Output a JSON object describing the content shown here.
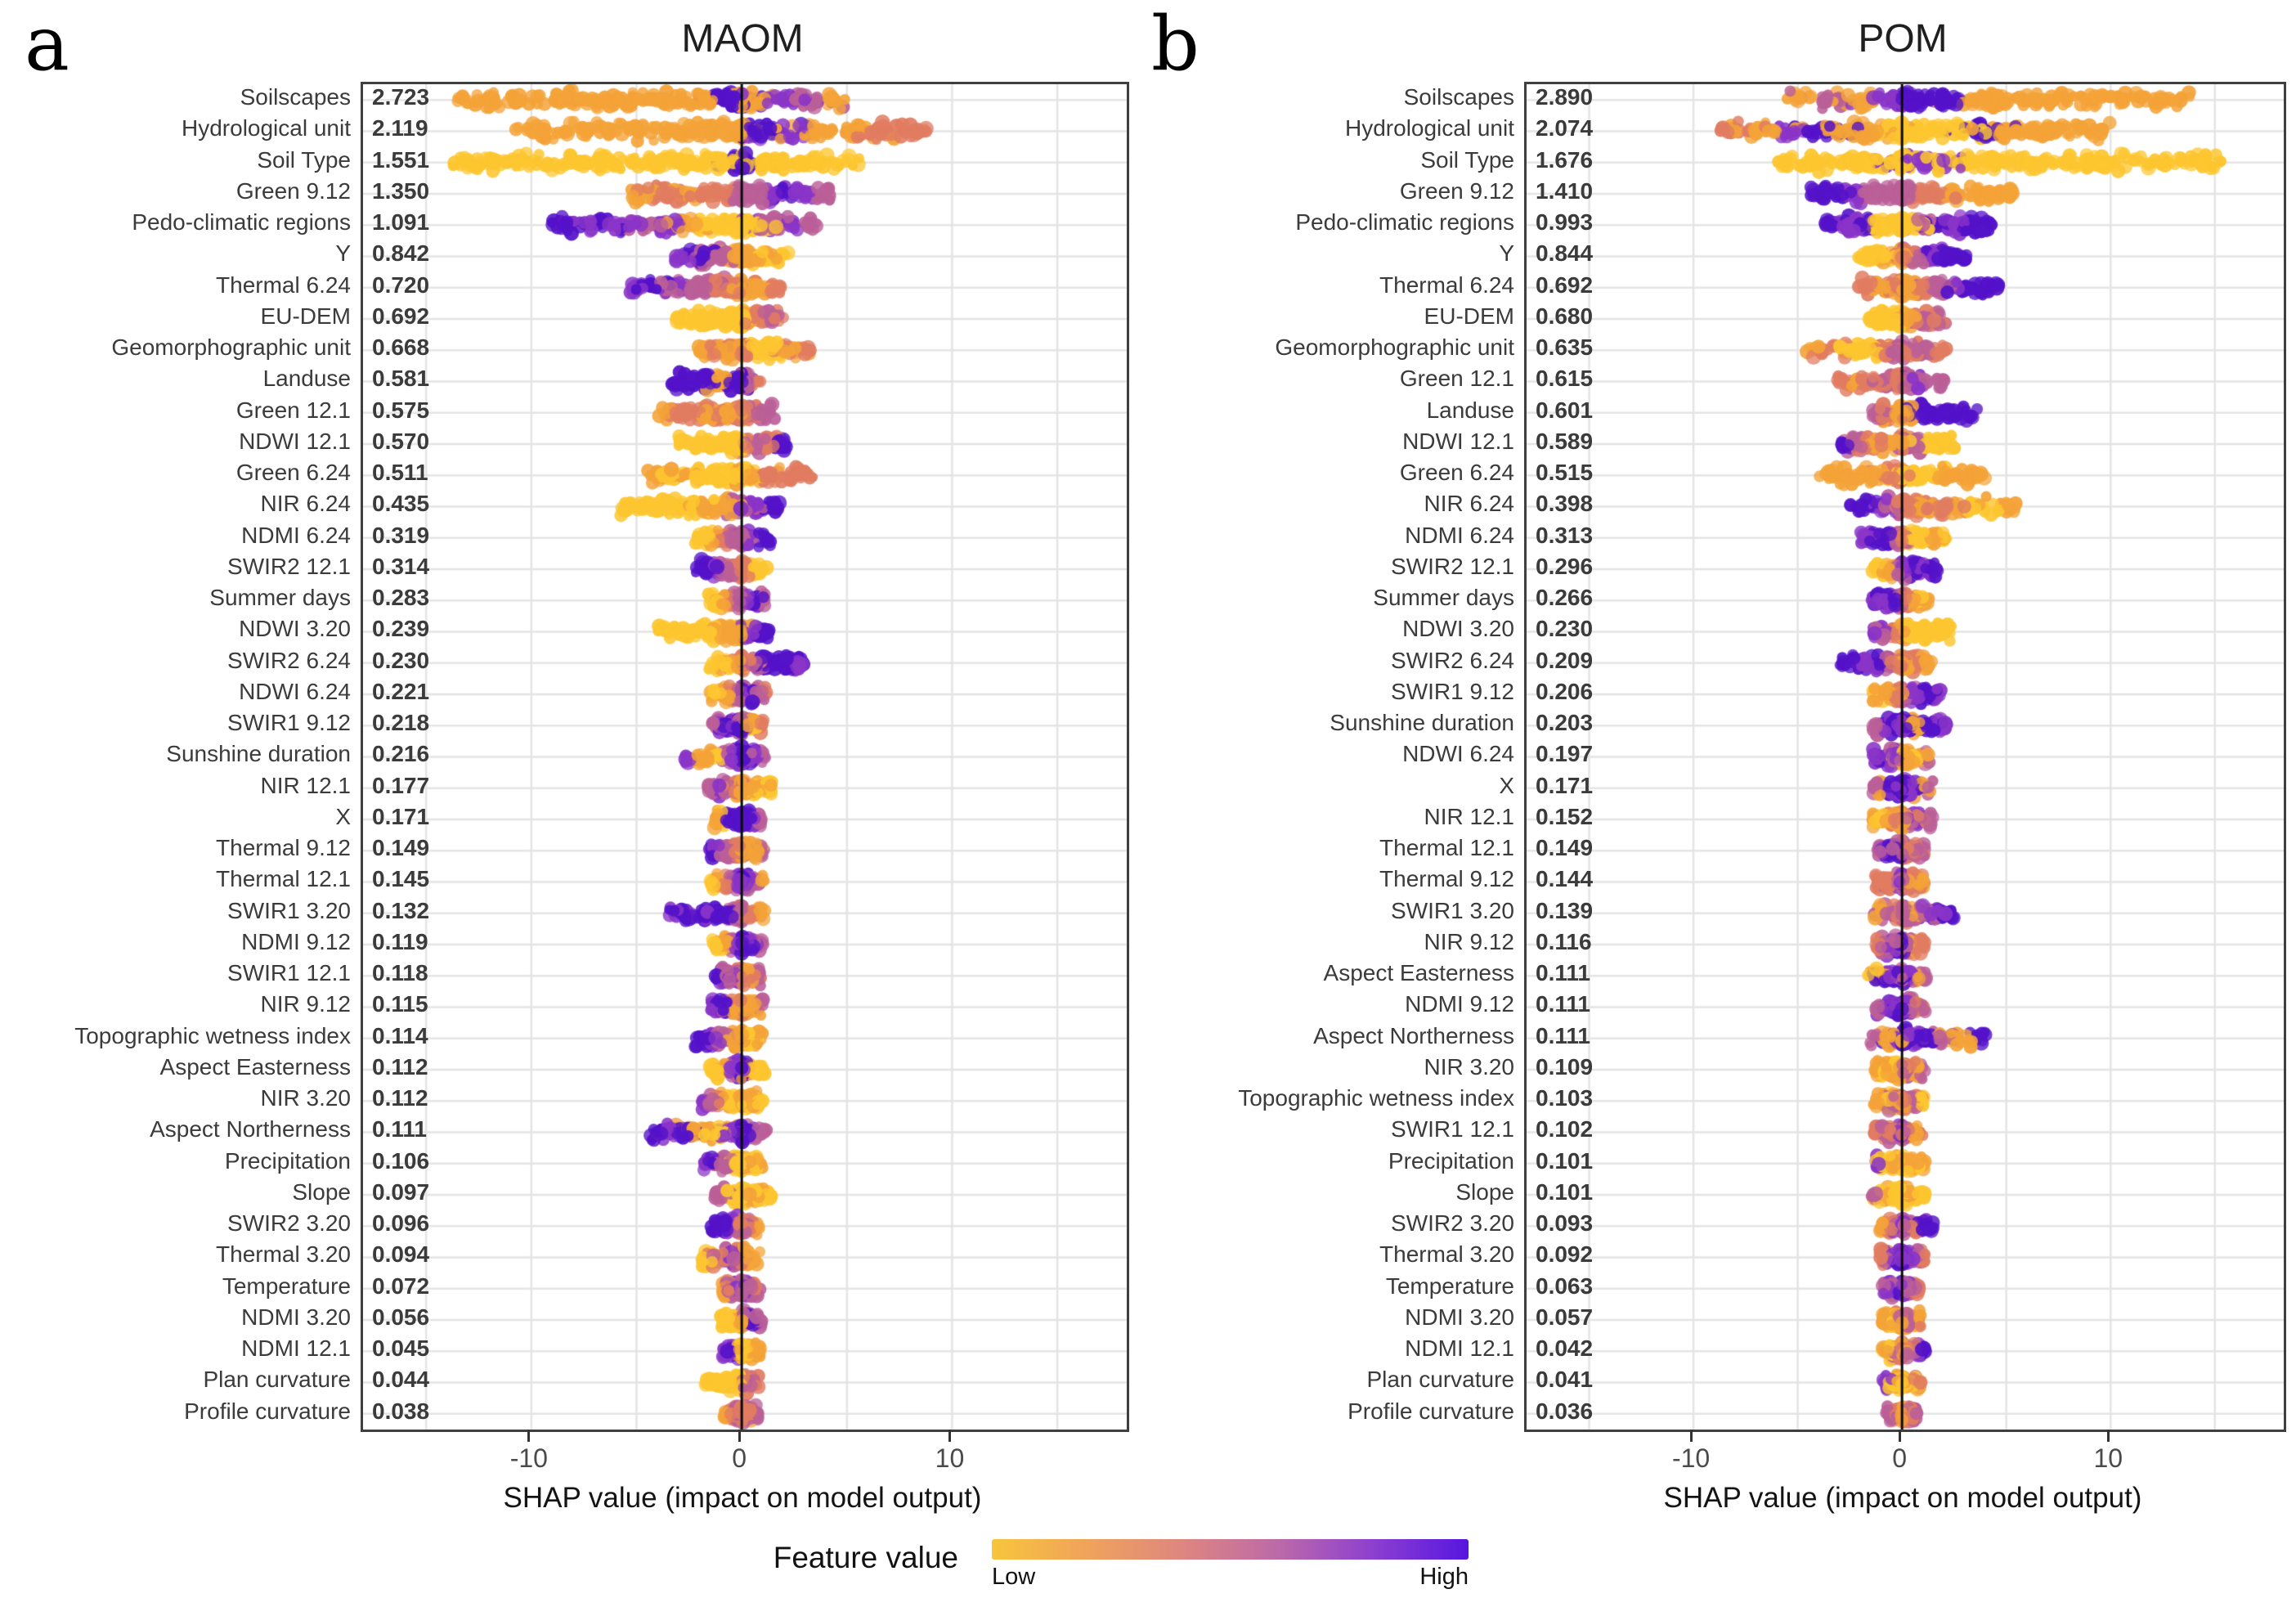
{
  "figure": {
    "letters": [
      "a",
      "b"
    ],
    "legend": {
      "title": "Feature value",
      "low_label": "Low",
      "high_label": "High",
      "gradient": [
        "#F7C53C",
        "#F0A35B",
        "#DE8680",
        "#BC6AA8",
        "#8D3FD0",
        "#5716E0"
      ]
    },
    "palette": {
      "y": "#FDC630",
      "o": "#F4A338",
      "s": "#E17C61",
      "m": "#BB5F98",
      "p": "#8A34C8",
      "d": "#5412C9"
    },
    "seed": 20240513
  },
  "chart_data": [
    {
      "type": "scatter",
      "variant": "shap-beeswarm",
      "title": "MAOM",
      "xlabel": "SHAP value (impact on model output)",
      "xlim": [
        -18.0,
        18.3
      ],
      "xticks": [
        -10,
        0,
        10
      ],
      "grid_every": 5,
      "features": [
        {
          "label": "Soilscapes",
          "value": "2.723",
          "min": -13.5,
          "max": 5.2,
          "pattern": "ooooooooodopmo"
        },
        {
          "label": "Hydrological unit",
          "value": "2.119",
          "min": -11.0,
          "max": 8.8,
          "pattern": "oooooooodpooss"
        },
        {
          "label": "Soil Type",
          "value": "1.551",
          "min": -14.3,
          "max": 5.6,
          "pattern": "yyyyyyyyyyyyyydyyyyy"
        },
        {
          "label": "Green 9.12",
          "value": "1.350",
          "min": -5.3,
          "max": 4.2,
          "pattern": "ossossmmpdpm"
        },
        {
          "label": "Pedo-climatic regions",
          "value": "1.091",
          "min": -9.0,
          "max": 3.7,
          "pattern": "dpdpmpoyyympm"
        },
        {
          "label": "Y",
          "value": "0.842",
          "min": -3.2,
          "max": 2.2,
          "pattern": "pddmmoooyoy"
        },
        {
          "label": "Thermal 6.24",
          "value": "0.720",
          "min": -5.3,
          "max": 1.9,
          "pattern": "pdmpmmssoos"
        },
        {
          "label": "EU-DEM",
          "value": "0.692",
          "min": -3.1,
          "max": 2.0,
          "pattern": "yyyyyyyosms"
        },
        {
          "label": "Geomorphographic unit",
          "value": "0.668",
          "min": -2.1,
          "max": 3.4,
          "pattern": "osoosyyysos"
        },
        {
          "label": "Landuse",
          "value": "0.581",
          "min": -3.3,
          "max": 0.9,
          "pattern": "dddddoddms"
        },
        {
          "label": "Green 12.1",
          "value": "0.575",
          "min": -4.0,
          "max": 1.6,
          "pattern": "ossososmm"
        },
        {
          "label": "NDWI 12.1",
          "value": "0.570",
          "min": -3.0,
          "max": 2.2,
          "pattern": "yyyyyysmsd"
        },
        {
          "label": "Green 6.24",
          "value": "0.511",
          "min": -4.6,
          "max": 3.4,
          "pattern": "oyoyyyosss"
        },
        {
          "label": "NIR 6.24",
          "value": "0.435",
          "min": -5.8,
          "max": 1.8,
          "pattern": "yyyyyoompd"
        },
        {
          "label": "NDMI 6.24",
          "value": "0.319",
          "min": -2.3,
          "max": 1.4,
          "pattern": "yyosmmpdd"
        },
        {
          "label": "SWIR2 12.1",
          "value": "0.314",
          "min": -2.2,
          "max": 1.2,
          "pattern": "ddpmmsoyy"
        },
        {
          "label": "Summer days",
          "value": "0.283",
          "min": -1.6,
          "max": 1.1,
          "pattern": "yoosmmpdm"
        },
        {
          "label": "NDWI 3.20",
          "value": "0.239",
          "min": -4.0,
          "max": 1.3,
          "pattern": "yyyyyoopd"
        },
        {
          "label": "SWIR2 6.24",
          "value": "0.230",
          "min": -1.6,
          "max": 3.0,
          "pattern": "yyosmdddp"
        },
        {
          "label": "NDWI 6.24",
          "value": "0.221",
          "min": -1.5,
          "max": 1.2,
          "pattern": "yoosmpdms"
        },
        {
          "label": "SWIR1 9.12",
          "value": "0.218",
          "min": -1.4,
          "max": 1.1,
          "pattern": "mpdpdmoys"
        },
        {
          "label": "Sunshine duration",
          "value": "0.216",
          "min": -2.7,
          "max": 1.2,
          "pattern": "pooympdpm"
        },
        {
          "label": "NIR 12.1",
          "value": "0.177",
          "min": -1.6,
          "max": 1.5,
          "pattern": "mpmsooyoy"
        },
        {
          "label": "X",
          "value": "0.171",
          "min": -1.3,
          "max": 0.9,
          "pattern": "oydddddpm"
        },
        {
          "label": "Thermal 9.12",
          "value": "0.149",
          "min": -1.5,
          "max": 1.1,
          "pattern": "dpmmsooom"
        },
        {
          "label": "Thermal 12.1",
          "value": "0.145",
          "min": -1.5,
          "max": 1.1,
          "pattern": "yosmpdpmo"
        },
        {
          "label": "SWIR1 3.20",
          "value": "0.132",
          "min": -3.5,
          "max": 1.1,
          "pattern": "pdpdddmso"
        },
        {
          "label": "NDMI 9.12",
          "value": "0.119",
          "min": -1.4,
          "max": 1.0,
          "pattern": "yyompdpdm"
        },
        {
          "label": "SWIR1 12.1",
          "value": "0.118",
          "min": -1.3,
          "max": 1.0,
          "pattern": "dpmpmsosm"
        },
        {
          "label": "NIR 9.12",
          "value": "0.115",
          "min": -1.5,
          "max": 1.0,
          "pattern": "pdmsosoom"
        },
        {
          "label": "Topographic wetness index",
          "value": "0.114",
          "min": -2.2,
          "max": 1.0,
          "pattern": "ddpmmooyo"
        },
        {
          "label": "Aspect Easterness",
          "value": "0.112",
          "min": -1.5,
          "max": 1.1,
          "pattern": "yyompdoyy"
        },
        {
          "label": "NIR 3.20",
          "value": "0.112",
          "min": -2.0,
          "max": 1.0,
          "pattern": "pmsoyoyoy"
        },
        {
          "label": "Aspect Northerness",
          "value": "0.111",
          "min": -4.4,
          "max": 1.2,
          "pattern": "dpdooypdm"
        },
        {
          "label": "Precipitation",
          "value": "0.106",
          "min": -2.0,
          "max": 1.1,
          "pattern": "pdmmyyoyo"
        },
        {
          "label": "Slope",
          "value": "0.097",
          "min": -1.3,
          "max": 1.4,
          "pattern": "mmyyyoyoy"
        },
        {
          "label": "SWIR2 3.20",
          "value": "0.096",
          "min": -1.5,
          "max": 0.9,
          "pattern": "dddpmsmso"
        },
        {
          "label": "Thermal 3.20",
          "value": "0.094",
          "min": -2.0,
          "max": 0.9,
          "pattern": "yysmpmsoo"
        },
        {
          "label": "Temperature",
          "value": "0.072",
          "min": -1.0,
          "max": 0.9,
          "pattern": "osmpmpmsm"
        },
        {
          "label": "NDMI 3.20",
          "value": "0.056",
          "min": -1.0,
          "max": 0.9,
          "pattern": "yyyyomdpm"
        },
        {
          "label": "NDMI 12.1",
          "value": "0.045",
          "min": -0.9,
          "max": 0.9,
          "pattern": "pdpoyyooo"
        },
        {
          "label": "Plan curvature",
          "value": "0.044",
          "min": -1.8,
          "max": 0.9,
          "pattern": "yyyyyysms"
        },
        {
          "label": "Profile curvature",
          "value": "0.038",
          "min": -0.8,
          "max": 0.8,
          "pattern": "ossmsmsom"
        }
      ]
    },
    {
      "type": "scatter",
      "variant": "shap-beeswarm",
      "title": "POM",
      "xlabel": "SHAP value (impact on model output)",
      "xlim": [
        -18.0,
        18.3
      ],
      "xticks": [
        -10,
        0,
        10
      ],
      "grid_every": 5,
      "features": [
        {
          "label": "Soilscapes",
          "value": "2.890",
          "min": -5.5,
          "max": 13.8,
          "pattern": "omopddoooooooo"
        },
        {
          "label": "Hydrological unit",
          "value": "2.074",
          "min": -8.7,
          "max": 10.0,
          "pattern": "sopdooyyydoooo"
        },
        {
          "label": "Soil Type",
          "value": "1.676",
          "min": -6.0,
          "max": 15.4,
          "pattern": "yyyypyyyyyyyyy"
        },
        {
          "label": "Green 9.12",
          "value": "1.410",
          "min": -4.4,
          "max": 5.4,
          "pattern": "ddpmmmssoooo"
        },
        {
          "label": "Pedo-climatic regions",
          "value": "0.993",
          "min": -3.7,
          "max": 4.3,
          "pattern": "dpdyyymdpdd"
        },
        {
          "label": "Y",
          "value": "0.844",
          "min": -2.1,
          "max": 3.1,
          "pattern": "yyyosmpddd"
        },
        {
          "label": "Thermal 6.24",
          "value": "0.692",
          "min": -2.1,
          "max": 4.9,
          "pattern": "sososmpddd"
        },
        {
          "label": "EU-DEM",
          "value": "0.680",
          "min": -1.6,
          "max": 2.1,
          "pattern": "yyyyosmsm"
        },
        {
          "label": "Geomorphographic unit",
          "value": "0.635",
          "min": -4.6,
          "max": 2.1,
          "pattern": "osyyysmsms"
        },
        {
          "label": "Green 12.1",
          "value": "0.615",
          "min": -3.1,
          "max": 2.1,
          "pattern": "sossmsmpmm"
        },
        {
          "label": "Landuse",
          "value": "0.601",
          "min": -1.5,
          "max": 3.6,
          "pattern": "msoodddddd"
        },
        {
          "label": "NDWI 12.1",
          "value": "0.589",
          "min": -3.0,
          "max": 2.6,
          "pattern": "dmsoosmyyy"
        },
        {
          "label": "Green 6.24",
          "value": "0.515",
          "min": -4.0,
          "max": 4.0,
          "pattern": "oooosyyooo"
        },
        {
          "label": "NIR 6.24",
          "value": "0.398",
          "min": -2.5,
          "max": 5.5,
          "pattern": "dpmsosoyyo"
        },
        {
          "label": "NDMI 6.24",
          "value": "0.313",
          "min": -2.0,
          "max": 2.2,
          "pattern": "pddmsyyoy"
        },
        {
          "label": "SWIR2 12.1",
          "value": "0.296",
          "min": -1.5,
          "max": 1.8,
          "pattern": "yyompdpdd"
        },
        {
          "label": "Summer days",
          "value": "0.266",
          "min": -1.5,
          "max": 1.3,
          "pattern": "pdpdmsoyo"
        },
        {
          "label": "NDWI 3.20",
          "value": "0.230",
          "min": -1.5,
          "max": 2.4,
          "pattern": "pmsoyyyyy"
        },
        {
          "label": "SWIR2 6.24",
          "value": "0.209",
          "min": -3.0,
          "max": 1.5,
          "pattern": "ddpdmsoso"
        },
        {
          "label": "SWIR1 9.12",
          "value": "0.206",
          "min": -1.5,
          "max": 1.9,
          "pattern": "oyosmpddp"
        },
        {
          "label": "Sunshine duration",
          "value": "0.203",
          "min": -1.5,
          "max": 2.1,
          "pattern": "mpdpdoddp"
        },
        {
          "label": "NDWI 6.24",
          "value": "0.197",
          "min": -1.5,
          "max": 1.3,
          "pattern": "pdpmyoyom"
        },
        {
          "label": "X",
          "value": "0.171",
          "min": -1.5,
          "max": 1.5,
          "pattern": "modpdpdom"
        },
        {
          "label": "NIR 12.1",
          "value": "0.152",
          "min": -1.5,
          "max": 1.5,
          "pattern": "oyosompsm"
        },
        {
          "label": "Thermal 12.1",
          "value": "0.149",
          "min": -1.3,
          "max": 1.1,
          "pattern": "mpddmsmsm"
        },
        {
          "label": "Thermal 9.12",
          "value": "0.144",
          "min": -1.3,
          "max": 1.1,
          "pattern": "smsmpmsos"
        },
        {
          "label": "SWIR1 3.20",
          "value": "0.139",
          "min": -1.3,
          "max": 2.6,
          "pattern": "omsmompdd"
        },
        {
          "label": "NIR 9.12",
          "value": "0.116",
          "min": -1.3,
          "max": 1.1,
          "pattern": "smpmdmsos"
        },
        {
          "label": "Aspect Easterness",
          "value": "0.111",
          "min": -1.7,
          "max": 1.2,
          "pattern": "yodpdmpom"
        },
        {
          "label": "NDMI 9.12",
          "value": "0.111",
          "min": -1.3,
          "max": 1.1,
          "pattern": "mpdpdpmsm"
        },
        {
          "label": "Aspect Northerness",
          "value": "0.111",
          "min": -1.6,
          "max": 4.0,
          "pattern": "modpdmood"
        },
        {
          "label": "NIR 3.20",
          "value": "0.109",
          "min": -1.3,
          "max": 1.1,
          "pattern": "oyoyomsom"
        },
        {
          "label": "Topographic wetness index",
          "value": "0.103",
          "min": -1.4,
          "max": 1.1,
          "pattern": "ooymosmsy"
        },
        {
          "label": "SWIR1 12.1",
          "value": "0.102",
          "min": -1.3,
          "max": 1.0,
          "pattern": "smsmpmsos"
        },
        {
          "label": "Precipitation",
          "value": "0.101",
          "min": -1.3,
          "max": 1.1,
          "pattern": "pyyoyyoyo"
        },
        {
          "label": "Slope",
          "value": "0.101",
          "min": -1.5,
          "max": 1.1,
          "pattern": "myoyyyoyy"
        },
        {
          "label": "SWIR2 3.20",
          "value": "0.093",
          "min": -1.1,
          "max": 1.6,
          "pattern": "osmpmspdd"
        },
        {
          "label": "Thermal 3.20",
          "value": "0.092",
          "min": -1.1,
          "max": 1.1,
          "pattern": "smpdpdpms"
        },
        {
          "label": "Temperature",
          "value": "0.063",
          "min": -0.9,
          "max": 0.9,
          "pattern": "mpmdpmpms"
        },
        {
          "label": "NDMI 3.20",
          "value": "0.057",
          "min": -0.9,
          "max": 0.9,
          "pattern": "ooysomoso"
        },
        {
          "label": "NDMI 12.1",
          "value": "0.042",
          "min": -0.9,
          "max": 1.1,
          "pattern": "oymsomspd"
        },
        {
          "label": "Plan curvature",
          "value": "0.041",
          "min": -0.9,
          "max": 0.9,
          "pattern": "pyyoyoyso"
        },
        {
          "label": "Profile curvature",
          "value": "0.036",
          "min": -0.7,
          "max": 0.7,
          "pattern": "msmsosmsm"
        }
      ]
    }
  ]
}
